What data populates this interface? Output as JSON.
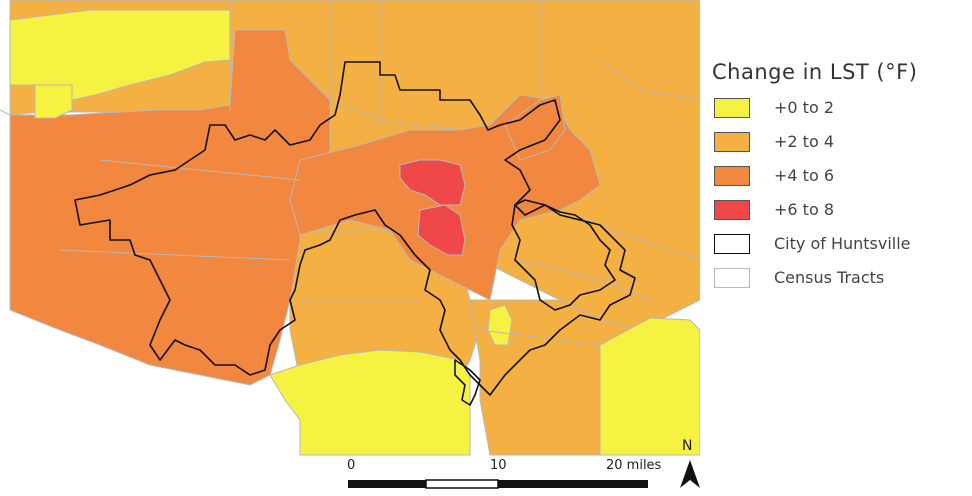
{
  "legend": {
    "title": "Change in LST (°F)",
    "items": [
      {
        "label": "+0 to 2",
        "fill": "#f5f242",
        "border": "#555555"
      },
      {
        "label": "+2 to 4",
        "fill": "#f5b043",
        "border": "#555555"
      },
      {
        "label": "+4 to 6",
        "fill": "#f2873f",
        "border": "#555555"
      },
      {
        "label": "+6 to 8",
        "fill": "#f04848",
        "border": "#555555"
      },
      {
        "label": "City of Huntsville",
        "fill": "#ffffff",
        "border": "#111111"
      },
      {
        "label": "Census Tracts",
        "fill": "#ffffff",
        "border": "#b8b8b8"
      }
    ]
  },
  "scale_bar": {
    "labels": [
      "0",
      "10",
      "20 miles"
    ]
  },
  "north_arrow": {
    "label": "N"
  },
  "colors": {
    "class_0_2": "#f5f242",
    "class_2_4": "#f5b043",
    "class_4_6": "#f2873f",
    "class_6_8": "#f04848",
    "city_outline": "#111111",
    "tract_outline": "#b8b8b8"
  }
}
